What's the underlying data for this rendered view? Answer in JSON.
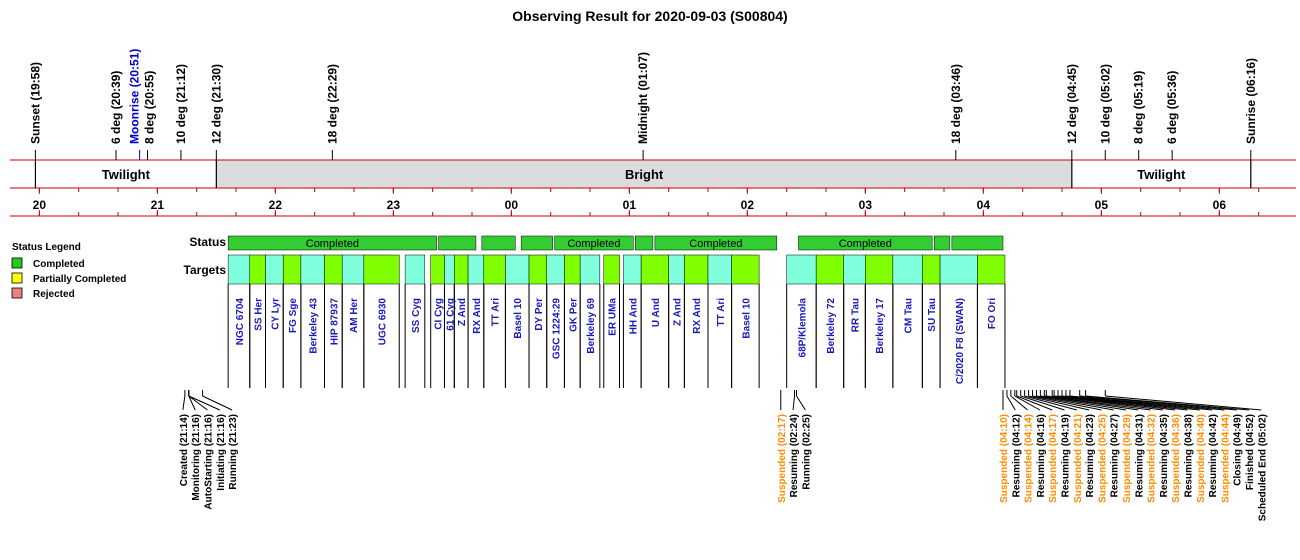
{
  "chart_data": {
    "type": "timeline",
    "title": "Observing Result for 2020-09-03 (S00804)",
    "time_axis": {
      "start": "19:40",
      "end": "06:30",
      "hour_labels": [
        "20",
        "21",
        "22",
        "23",
        "00",
        "01",
        "02",
        "03",
        "04",
        "05",
        "06"
      ]
    },
    "sun_events": [
      {
        "label": "Sunset (19:58)",
        "time": "19:58",
        "color": "#000000"
      },
      {
        "label": "6 deg (20:39)",
        "time": "20:39",
        "color": "#000000"
      },
      {
        "label": "Moonrise (20:51)",
        "time": "20:51",
        "color": "#0000cc"
      },
      {
        "label": "8 deg (20:55)",
        "time": "20:55",
        "color": "#000000"
      },
      {
        "label": "10 deg (21:12)",
        "time": "21:12",
        "color": "#000000"
      },
      {
        "label": "12 deg (21:30)",
        "time": "21:30",
        "color": "#000000"
      },
      {
        "label": "18 deg (22:29)",
        "time": "22:29",
        "color": "#000000"
      },
      {
        "label": "Midnight (01:07)",
        "time": "01:07",
        "color": "#000000"
      },
      {
        "label": "18 deg (03:46)",
        "time": "03:46",
        "color": "#000000"
      },
      {
        "label": "12 deg (04:45)",
        "time": "04:45",
        "color": "#000000"
      },
      {
        "label": "10 deg (05:02)",
        "time": "05:02",
        "color": "#000000"
      },
      {
        "label": "8 deg (05:19)",
        "time": "05:19",
        "color": "#000000"
      },
      {
        "label": "6 deg (05:36)",
        "time": "05:36",
        "color": "#000000"
      },
      {
        "label": "Sunrise (06:16)",
        "time": "06:16",
        "color": "#000000"
      }
    ],
    "sky_periods": [
      {
        "label": "Twilight",
        "start": "19:58",
        "end": "21:30",
        "shade": false
      },
      {
        "label": "Bright",
        "start": "21:30",
        "end": "04:45",
        "shade": true
      },
      {
        "label": "Twilight",
        "start": "04:45",
        "end": "06:16",
        "shade": false
      }
    ],
    "row_labels": {
      "status": "Status",
      "targets": "Targets"
    },
    "legend": {
      "title": "Status Legend",
      "items": [
        {
          "label": "Completed",
          "color": "#22cc22"
        },
        {
          "label": "Partially Completed",
          "color": "#ffff00"
        },
        {
          "label": "Rejected",
          "color": "#f08080"
        }
      ]
    },
    "status_blocks": [
      {
        "start": "21:36",
        "end": "23:22",
        "label": "Completed",
        "color": "#33cc33"
      },
      {
        "start": "23:23",
        "end": "23:42",
        "label": "",
        "color": "#33cc33"
      },
      {
        "start": "23:45",
        "end": "24:02",
        "label": "",
        "color": "#33cc33"
      },
      {
        "start": "24:05",
        "end": "24:21",
        "label": "",
        "color": "#33cc33"
      },
      {
        "start": "24:22",
        "end": "25:02",
        "label": "Completed",
        "color": "#33cc33"
      },
      {
        "start": "25:03",
        "end": "25:12",
        "label": "",
        "color": "#33cc33"
      },
      {
        "start": "25:13",
        "end": "26:15",
        "label": "Completed",
        "color": "#33cc33"
      },
      {
        "start": "26:26",
        "end": "27:34",
        "label": "Completed",
        "color": "#33cc33"
      },
      {
        "start": "27:35",
        "end": "27:43",
        "label": "",
        "color": "#33cc33"
      },
      {
        "start": "27:44",
        "end": "28:10",
        "label": "",
        "color": "#33cc33"
      }
    ],
    "targets": [
      {
        "name": "NGC 6704",
        "start": "21:36",
        "end": "21:47",
        "color": "#80ffdd"
      },
      {
        "name": "SS Her",
        "start": "21:47",
        "end": "21:55",
        "color": "#80ff00"
      },
      {
        "name": "CY Lyr",
        "start": "21:55",
        "end": "22:04",
        "color": "#80ffdd"
      },
      {
        "name": "FG Sge",
        "start": "22:04",
        "end": "22:13",
        "color": "#80ff00"
      },
      {
        "name": "Berkeley 43",
        "start": "22:13",
        "end": "22:25",
        "color": "#80ffdd"
      },
      {
        "name": "HIP 87937",
        "start": "22:25",
        "end": "22:34",
        "color": "#80ff00"
      },
      {
        "name": "AM Her",
        "start": "22:34",
        "end": "22:45",
        "color": "#80ffdd"
      },
      {
        "name": "UGC 6930",
        "start": "22:45",
        "end": "23:03",
        "color": "#80ff00"
      },
      {
        "name": "SS Cyg",
        "start": "23:06",
        "end": "23:16",
        "color": "#80ffdd"
      },
      {
        "name": "CI Cyg",
        "start": "23:19",
        "end": "23:26",
        "color": "#80ff00"
      },
      {
        "name": "61 Cyg",
        "start": "23:26",
        "end": "23:31",
        "color": "#80ffdd"
      },
      {
        "name": "Z And",
        "start": "23:31",
        "end": "23:38",
        "color": "#80ff00"
      },
      {
        "name": "RX And",
        "start": "23:38",
        "end": "23:46",
        "color": "#80ffdd"
      },
      {
        "name": "TT Ari",
        "start": "23:46",
        "end": "23:57",
        "color": "#80ff00"
      },
      {
        "name": "Basel 10",
        "start": "23:57",
        "end": "24:09",
        "color": "#80ffdd"
      },
      {
        "name": "DY Per",
        "start": "24:09",
        "end": "24:18",
        "color": "#80ff00"
      },
      {
        "name": "GSC 1224:29",
        "start": "24:18",
        "end": "24:27",
        "color": "#80ffdd"
      },
      {
        "name": "GK Per",
        "start": "24:27",
        "end": "24:35",
        "color": "#80ff00"
      },
      {
        "name": "Berkeley 69",
        "start": "24:35",
        "end": "24:45",
        "color": "#80ffdd"
      },
      {
        "name": "ER UMa",
        "start": "24:47",
        "end": "24:55",
        "color": "#80ff00"
      },
      {
        "name": "HH And",
        "start": "24:57",
        "end": "25:06",
        "color": "#80ffdd"
      },
      {
        "name": "U And",
        "start": "25:06",
        "end": "25:20",
        "color": "#80ff00"
      },
      {
        "name": "Z And",
        "start": "25:20",
        "end": "25:28",
        "color": "#80ffdd"
      },
      {
        "name": "RX And",
        "start": "25:28",
        "end": "25:40",
        "color": "#80ff00"
      },
      {
        "name": "TT Ari",
        "start": "25:40",
        "end": "25:52",
        "color": "#80ffdd"
      },
      {
        "name": "Basel 10",
        "start": "25:52",
        "end": "26:06",
        "color": "#80ff00"
      },
      {
        "name": "68P/Klemola",
        "start": "26:20",
        "end": "26:35",
        "color": "#80ffdd"
      },
      {
        "name": "Berkeley 72",
        "start": "26:35",
        "end": "26:49",
        "color": "#80ff00"
      },
      {
        "name": "RR Tau",
        "start": "26:49",
        "end": "27:00",
        "color": "#80ffdd"
      },
      {
        "name": "Berkeley 17",
        "start": "27:00",
        "end": "27:14",
        "color": "#80ff00"
      },
      {
        "name": "CM Tau",
        "start": "27:14",
        "end": "27:29",
        "color": "#80ffdd"
      },
      {
        "name": "SU Tau",
        "start": "27:29",
        "end": "27:38",
        "color": "#80ff00"
      },
      {
        "name": "C/2020 F8 (SWAN)",
        "start": "27:38",
        "end": "27:57",
        "color": "#80ffdd"
      },
      {
        "name": "FO Ori",
        "start": "27:57",
        "end": "28:11",
        "color": "#80ff00"
      }
    ],
    "events": [
      {
        "label": "Created (21:14)",
        "time": "21:14",
        "color": "#000000"
      },
      {
        "label": "Monitoring (21:16)",
        "time": "21:16",
        "color": "#000000"
      },
      {
        "label": "AutoStarting (21:16)",
        "time": "21:16",
        "color": "#000000"
      },
      {
        "label": "Initiating (21:16)",
        "time": "21:16",
        "color": "#000000"
      },
      {
        "label": "Running (21:23)",
        "time": "21:23",
        "color": "#000000"
      },
      {
        "label": "Suspended (02:17)",
        "time": "02:17",
        "color": "#ff8c00"
      },
      {
        "label": "Resuming (02:24)",
        "time": "02:24",
        "color": "#000000"
      },
      {
        "label": "Running (02:25)",
        "time": "02:25",
        "color": "#000000"
      },
      {
        "label": "Suspended (04:10)",
        "time": "04:10",
        "color": "#ff8c00"
      },
      {
        "label": "Resuming (04:12)",
        "time": "04:12",
        "color": "#000000"
      },
      {
        "label": "Suspended (04:14)",
        "time": "04:14",
        "color": "#ff8c00"
      },
      {
        "label": "Resuming (04:16)",
        "time": "04:16",
        "color": "#000000"
      },
      {
        "label": "Suspended (04:17)",
        "time": "04:17",
        "color": "#ff8c00"
      },
      {
        "label": "Resuming (04:19)",
        "time": "04:19",
        "color": "#000000"
      },
      {
        "label": "Suspended (04:21)",
        "time": "04:21",
        "color": "#ff8c00"
      },
      {
        "label": "Resuming (04:23)",
        "time": "04:23",
        "color": "#000000"
      },
      {
        "label": "Suspended (04:25)",
        "time": "04:25",
        "color": "#ff8c00"
      },
      {
        "label": "Resuming (04:27)",
        "time": "04:27",
        "color": "#000000"
      },
      {
        "label": "Suspended (04:29)",
        "time": "04:29",
        "color": "#ff8c00"
      },
      {
        "label": "Resuming (04:31)",
        "time": "04:31",
        "color": "#000000"
      },
      {
        "label": "Suspended (04:32)",
        "time": "04:32",
        "color": "#ff8c00"
      },
      {
        "label": "Resuming (04:35)",
        "time": "04:35",
        "color": "#000000"
      },
      {
        "label": "Suspended (04:36)",
        "time": "04:36",
        "color": "#ff8c00"
      },
      {
        "label": "Resuming (04:38)",
        "time": "04:38",
        "color": "#000000"
      },
      {
        "label": "Suspended (04:40)",
        "time": "04:40",
        "color": "#ff8c00"
      },
      {
        "label": "Resuming (04:42)",
        "time": "04:42",
        "color": "#000000"
      },
      {
        "label": "Suspended (04:44)",
        "time": "04:44",
        "color": "#ff8c00"
      },
      {
        "label": "Closing (04:49)",
        "time": "04:49",
        "color": "#000000"
      },
      {
        "label": "Finished (04:52)",
        "time": "04:52",
        "color": "#000000"
      },
      {
        "label": "Scheduled End (05:02)",
        "time": "05:02",
        "color": "#000000"
      }
    ]
  }
}
